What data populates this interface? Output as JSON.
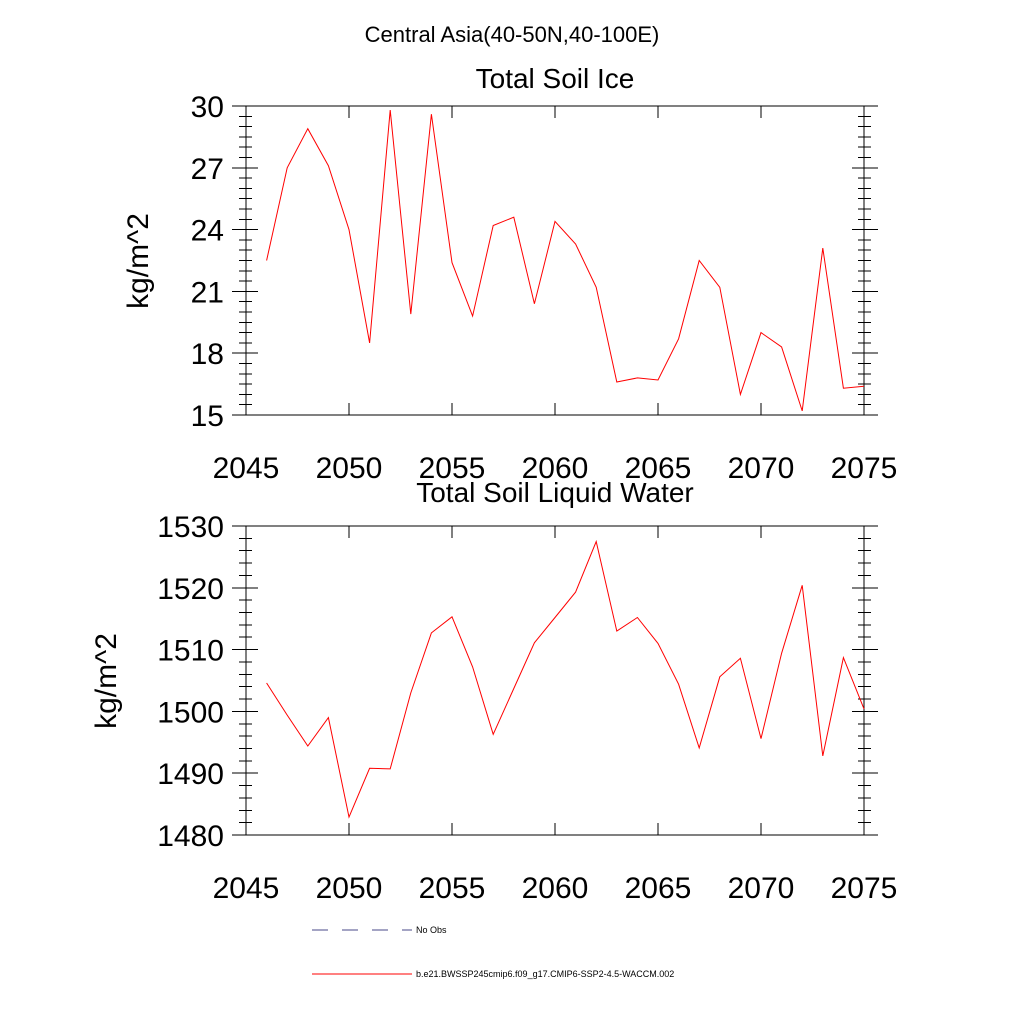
{
  "figure": {
    "title": "Central Asia(40-50N,40-100E)"
  },
  "chart_data": [
    {
      "type": "line",
      "title": "Total Soil Ice",
      "xlabel": "",
      "ylabel": "kg/m^2",
      "xlim": [
        2045,
        2075
      ],
      "ylim": [
        15,
        30
      ],
      "x_ticks": [
        2045,
        2050,
        2055,
        2060,
        2065,
        2070,
        2075
      ],
      "y_ticks": [
        15,
        18,
        21,
        24,
        27,
        30
      ],
      "grid": false,
      "series": [
        {
          "name": "b.e21.BWSSP245cmip6.f09_g17.CMIP6-SSP2-4.5-WACCM.002",
          "color": "#ff0000",
          "x": [
            2046,
            2047,
            2048,
            2049,
            2050,
            2051,
            2052,
            2053,
            2054,
            2055,
            2056,
            2057,
            2058,
            2059,
            2060,
            2061,
            2062,
            2063,
            2064,
            2065,
            2066,
            2067,
            2068,
            2069,
            2070,
            2071,
            2072,
            2073,
            2074,
            2075
          ],
          "values": [
            22.5,
            27.0,
            28.9,
            27.1,
            24.0,
            18.5,
            29.8,
            19.9,
            29.6,
            22.4,
            19.8,
            24.2,
            24.6,
            20.4,
            24.4,
            23.3,
            21.2,
            16.6,
            16.8,
            16.7,
            18.7,
            22.5,
            21.2,
            16.0,
            19.0,
            18.3,
            15.2,
            23.1,
            16.3,
            16.4
          ]
        }
      ]
    },
    {
      "type": "line",
      "title": "Total Soil Liquid Water",
      "xlabel": "",
      "ylabel": "kg/m^2",
      "xlim": [
        2045,
        2075
      ],
      "ylim": [
        1480,
        1530
      ],
      "x_ticks": [
        2045,
        2050,
        2055,
        2060,
        2065,
        2070,
        2075
      ],
      "y_ticks": [
        1480,
        1490,
        1500,
        1510,
        1520,
        1530
      ],
      "grid": false,
      "series": [
        {
          "name": "b.e21.BWSSP245cmip6.f09_g17.CMIP6-SSP2-4.5-WACCM.002",
          "color": "#ff0000",
          "x": [
            2046,
            2047,
            2048,
            2049,
            2050,
            2051,
            2052,
            2053,
            2054,
            2055,
            2056,
            2057,
            2058,
            2059,
            2060,
            2061,
            2062,
            2063,
            2064,
            2065,
            2066,
            2067,
            2068,
            2069,
            2070,
            2071,
            2072,
            2073,
            2074,
            2075
          ],
          "values": [
            1504.6,
            1499.4,
            1494.4,
            1499.0,
            1482.9,
            1490.8,
            1490.7,
            1503.0,
            1512.7,
            1515.3,
            1507.2,
            1496.3,
            1503.7,
            1511.1,
            1515.2,
            1519.3,
            1527.5,
            1513.0,
            1515.2,
            1511.0,
            1504.4,
            1494.1,
            1505.6,
            1508.6,
            1495.6,
            1509.4,
            1520.4,
            1492.8,
            1508.7,
            1500.4
          ]
        }
      ]
    }
  ],
  "legend": {
    "entries": [
      {
        "label": "No Obs",
        "style": "dashed",
        "color": "#4a4a8a"
      },
      {
        "label": "b.e21.BWSSP245cmip6.f09_g17.CMIP6-SSP2-4.5-WACCM.002",
        "style": "solid",
        "color": "#ff0000"
      }
    ]
  }
}
